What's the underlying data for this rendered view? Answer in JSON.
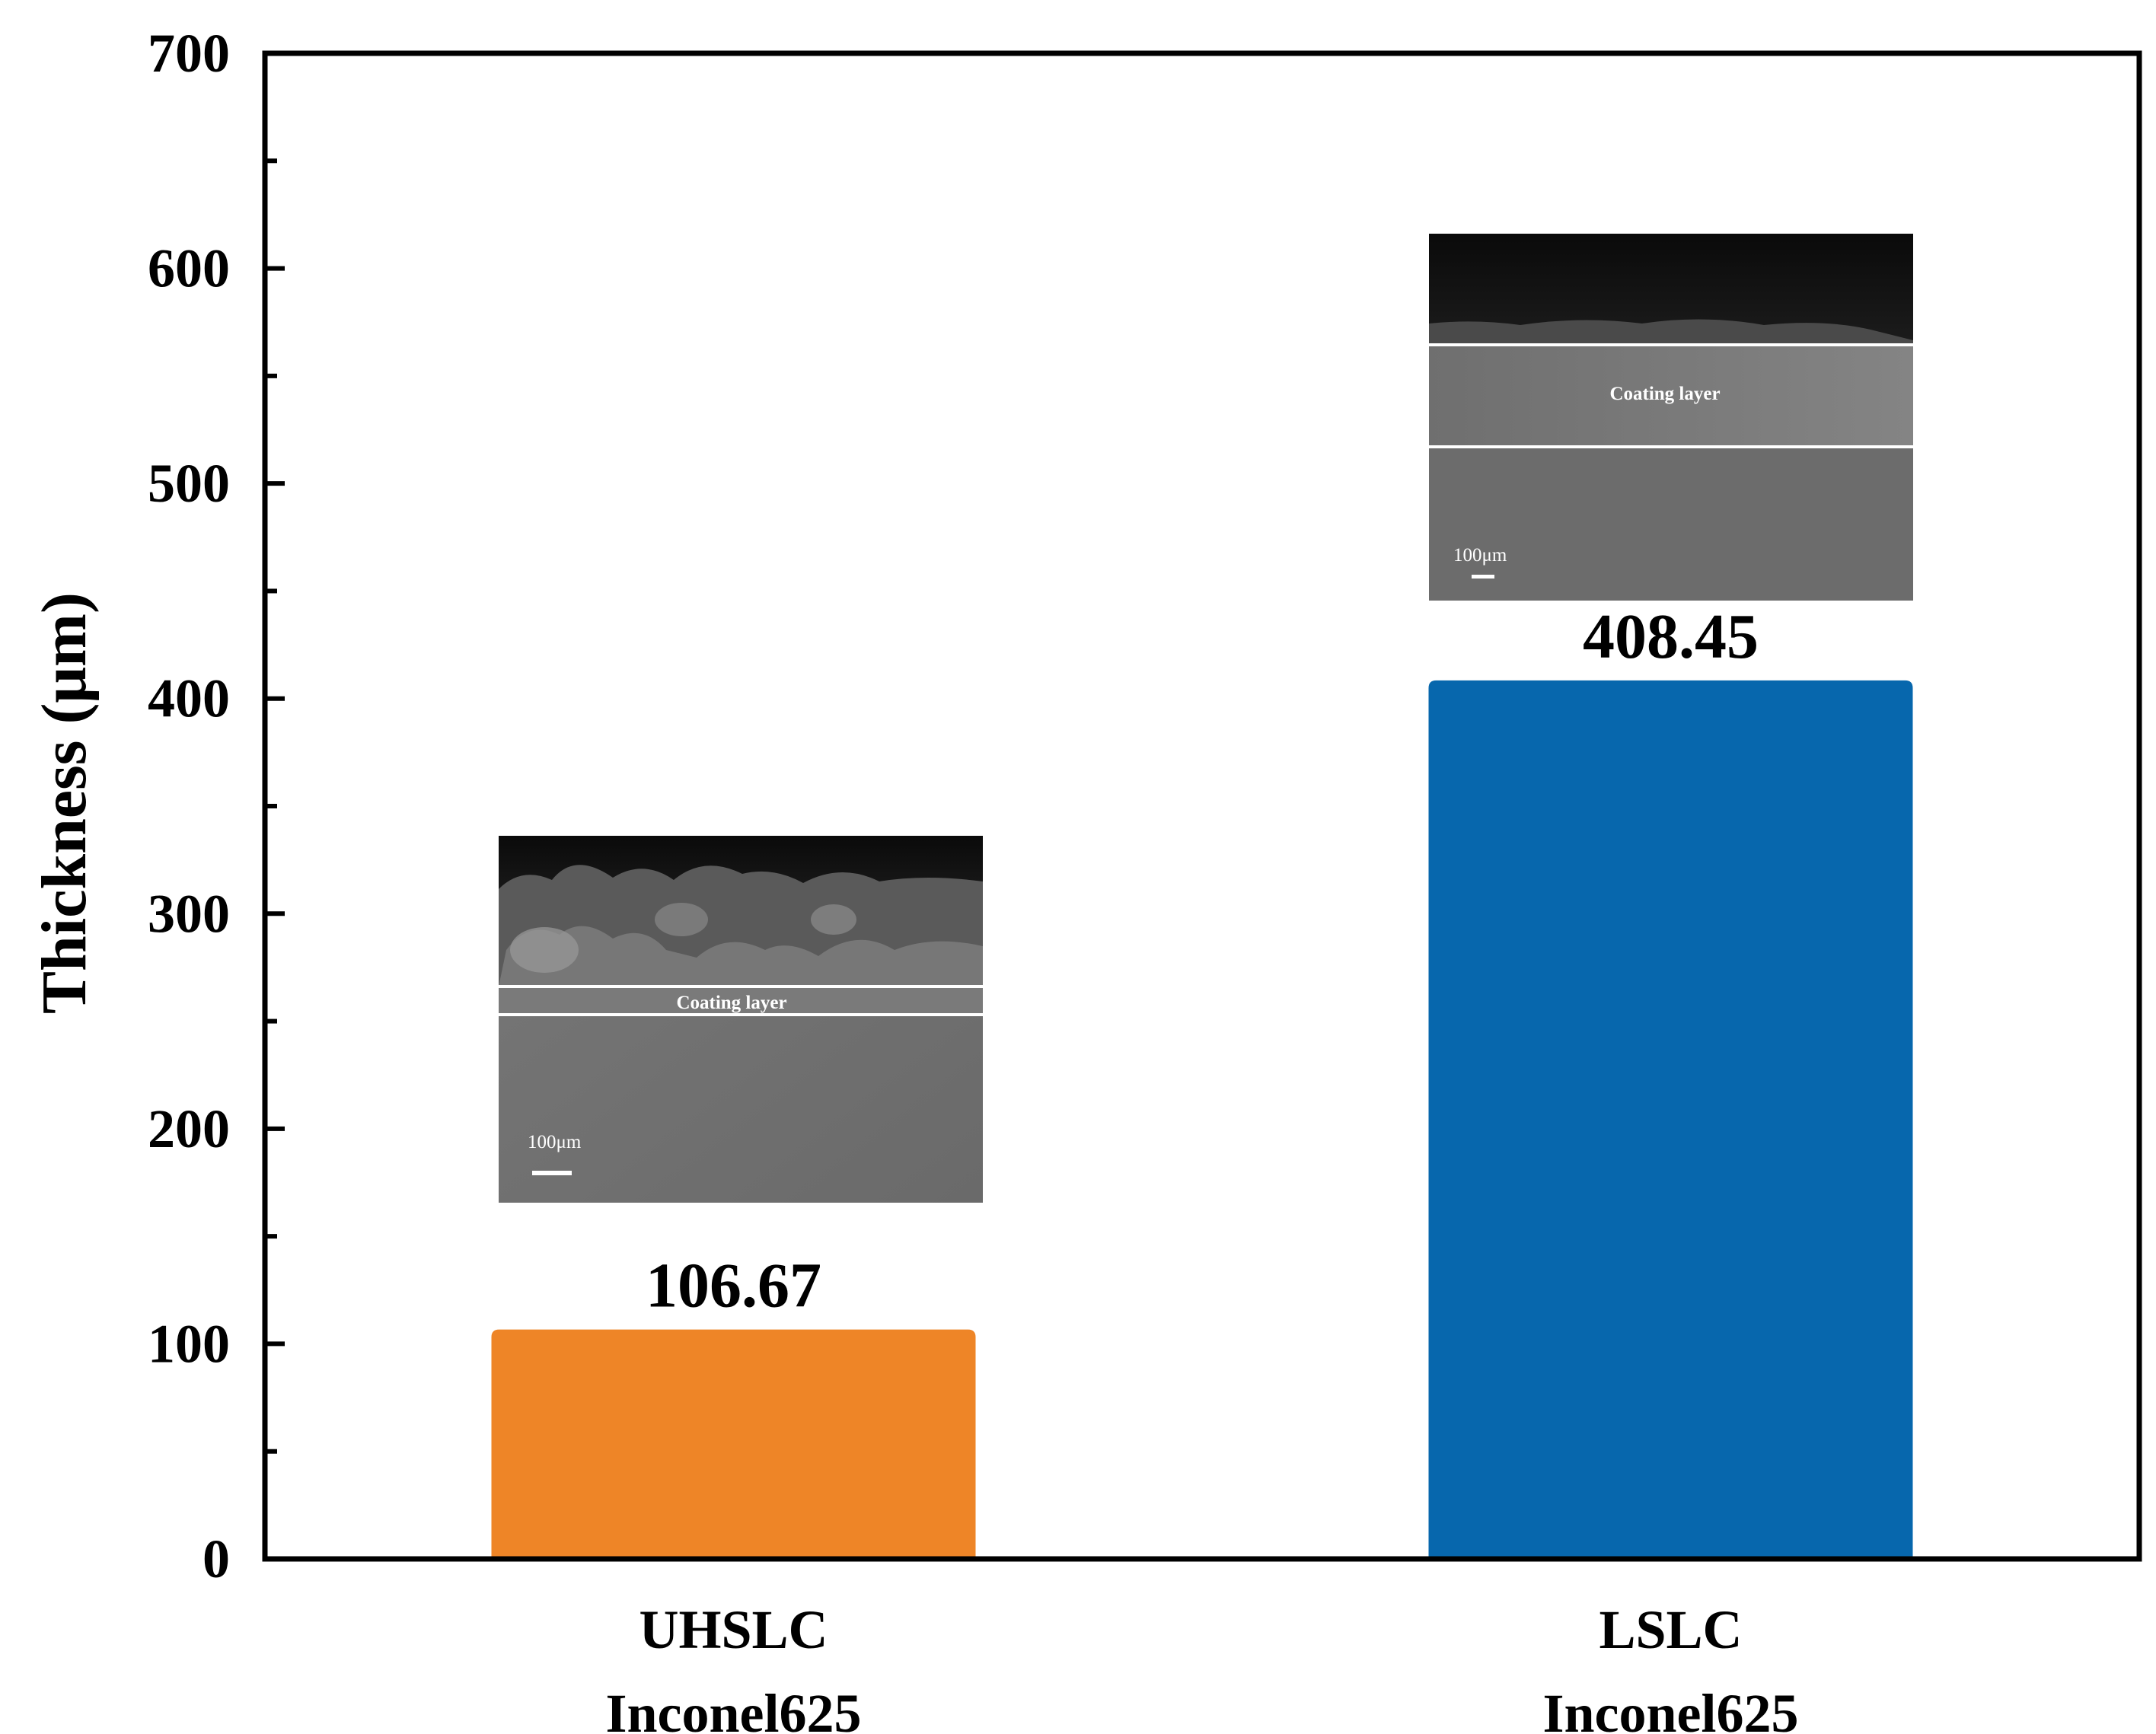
{
  "chart_data": {
    "type": "bar",
    "categories": [
      [
        "UHSLC",
        "Inconel625"
      ],
      [
        "LSLC",
        "Inconel625"
      ]
    ],
    "values": [
      106.67,
      408.45
    ],
    "value_labels": [
      "106.67",
      "408.45"
    ],
    "colors": [
      "#ee8527",
      "#0767ad"
    ],
    "ylabel": "Thickness (μm)",
    "xlabel": "",
    "title": "",
    "ylim": [
      0,
      700
    ],
    "yticks": [
      0,
      100,
      200,
      300,
      400,
      500,
      600,
      700
    ],
    "grid": false,
    "legend": "none"
  },
  "insets": [
    {
      "label": "Coating layer",
      "scale_bar": "100μm"
    },
    {
      "label": "Coating layer",
      "scale_bar": "100μm"
    }
  ]
}
